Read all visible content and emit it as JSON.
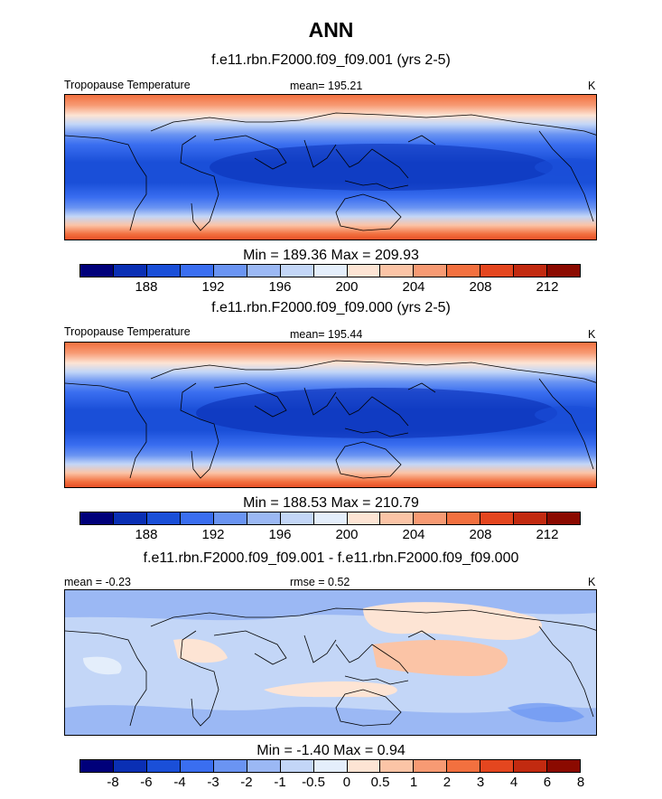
{
  "figure": {
    "title": "ANN"
  },
  "colors": {
    "scale": [
      "#00007a",
      "#0a2fb4",
      "#1a4fd8",
      "#3a6ef0",
      "#6a94f2",
      "#9bb8f4",
      "#c3d6f7",
      "#e4eefb",
      "#fde4d4",
      "#fbc4a6",
      "#f79a73",
      "#f2703f",
      "#e4461f",
      "#c22a10",
      "#8b0a00"
    ]
  },
  "panels": [
    {
      "case_title": "f.e11.rbn.F2000.f09_f09.001 (yrs 2-5)",
      "left_label": "Tropopause Temperature",
      "center_label": "mean= 195.21",
      "right_label": "K",
      "stats": "Min = 189.36 Max = 209.93"
    },
    {
      "case_title": "f.e11.rbn.F2000.f09_f09.000 (yrs 2-5)",
      "left_label": "Tropopause Temperature",
      "center_label": "mean= 195.44",
      "right_label": "K",
      "stats": "Min = 188.53 Max = 210.79"
    },
    {
      "case_title": "f.e11.rbn.F2000.f09_f09.001 - f.e11.rbn.F2000.f09_f09.000",
      "left_label": "mean =  -0.23",
      "center_label": "rmse =   0.52",
      "right_label": "K",
      "stats": "Min =  -1.40 Max =   0.94"
    }
  ],
  "colorbars": [
    {
      "labels": [
        "188",
        "192",
        "196",
        "200",
        "204",
        "208",
        "212"
      ]
    },
    {
      "labels": [
        "188",
        "192",
        "196",
        "200",
        "204",
        "208",
        "212"
      ]
    },
    {
      "labels": [
        "-8",
        "-6",
        "-4",
        "-3",
        "-2",
        "-1",
        "-0.5",
        "0",
        "0.5",
        "1",
        "2",
        "3",
        "4",
        "6",
        "8"
      ]
    }
  ]
}
